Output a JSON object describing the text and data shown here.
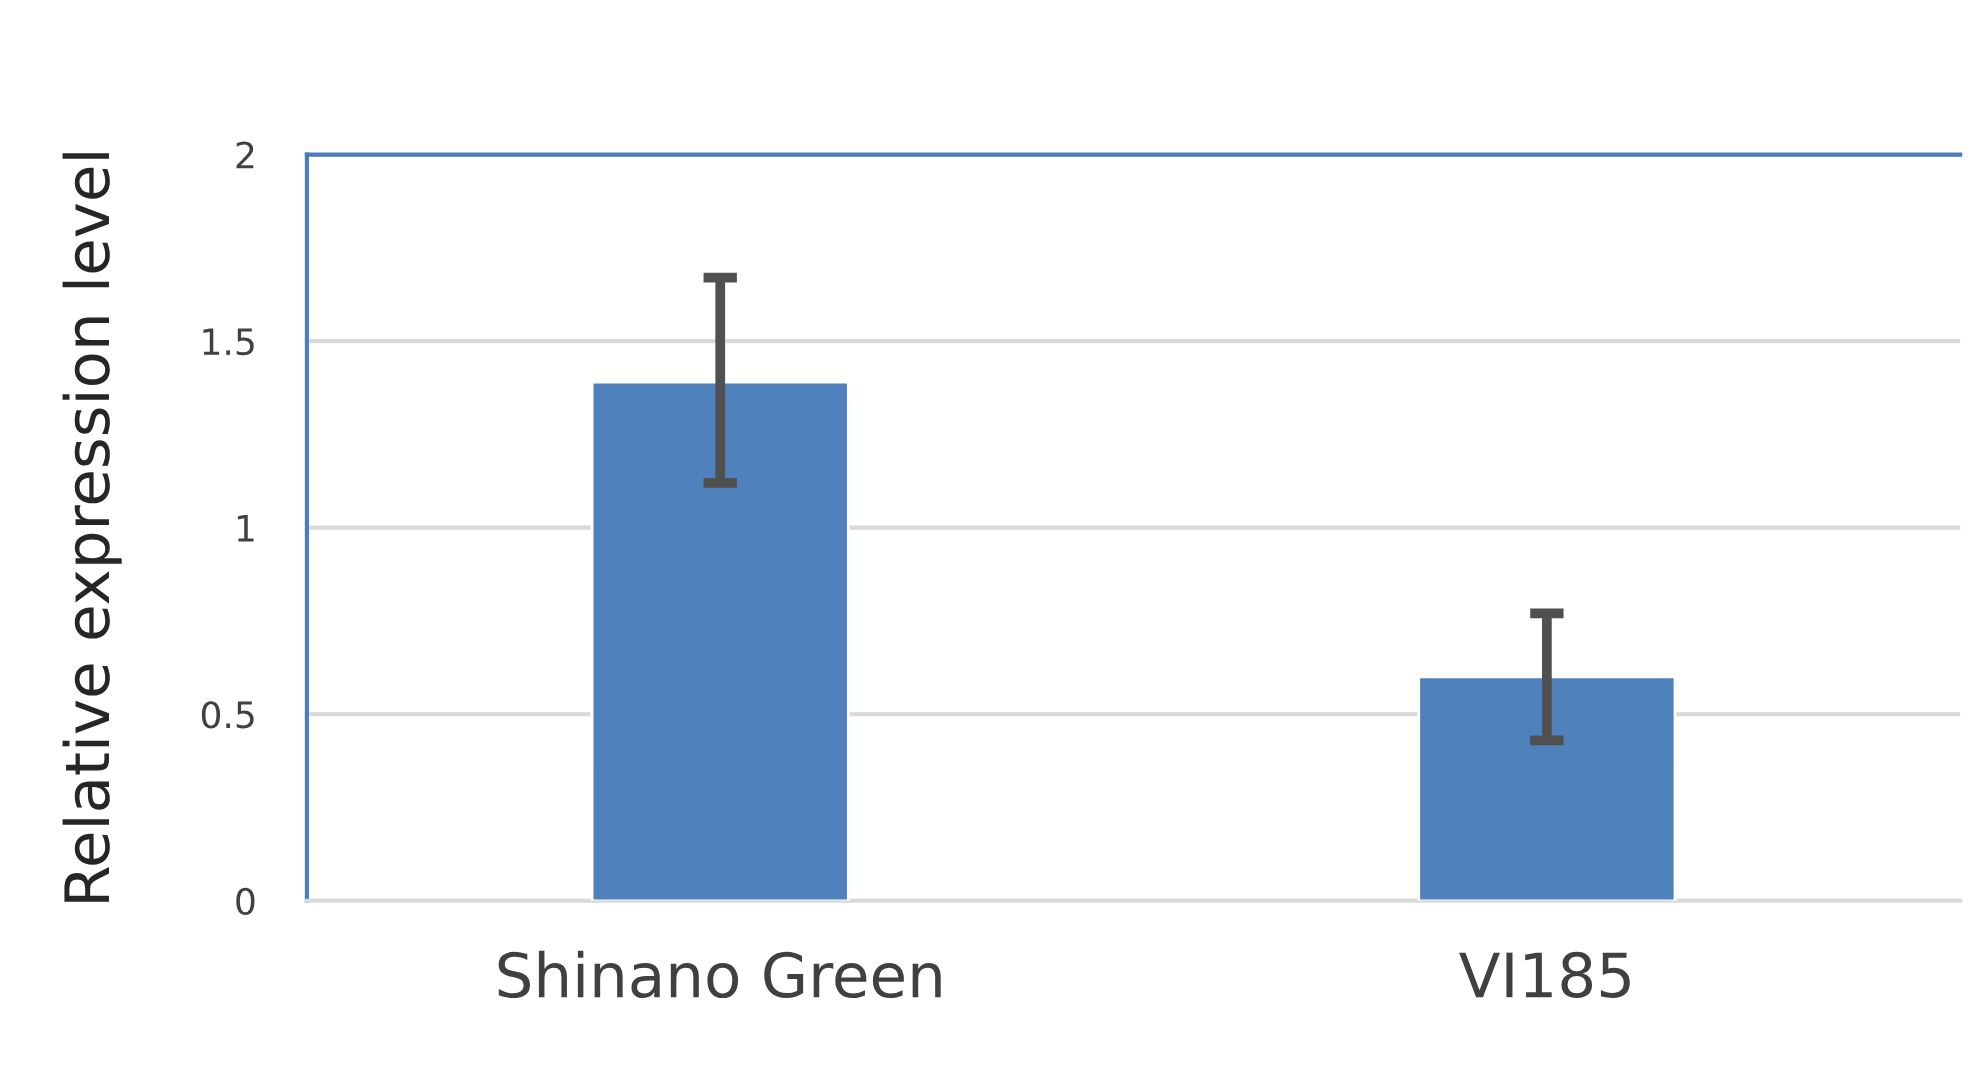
{
  "chart_data": {
    "type": "bar",
    "ylabel": "Relative expression level",
    "categories": [
      "Shinano Green",
      "VI185"
    ],
    "values": [
      1.39,
      0.6
    ],
    "errors": [
      [
        1.12,
        1.67
      ],
      [
        0.43,
        0.77
      ]
    ],
    "color": "#4f81bd",
    "ylim": [
      0,
      2
    ],
    "yticks": [
      0,
      0.5,
      1,
      1.5,
      2
    ],
    "grid": "y",
    "legend": false
  }
}
